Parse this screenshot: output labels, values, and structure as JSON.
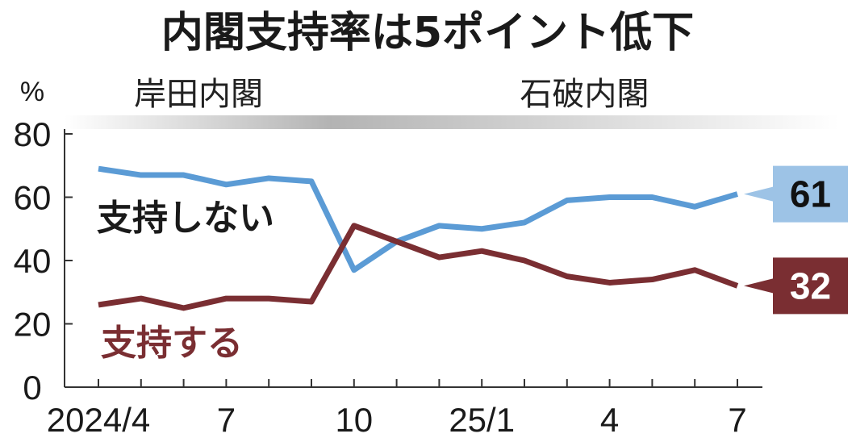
{
  "title": "内閣支持率は5ポイント低下",
  "colors": {
    "disapprove": "#5b9bd5",
    "approve": "#7a2e32",
    "disapprove_box": "#9dc3e6",
    "era_bar": "#b3b3b3",
    "axis": "#333333"
  },
  "chart_data": {
    "type": "line",
    "title": "内閣支持率は5ポイント低下",
    "ylabel": "%",
    "ylim": [
      0,
      80
    ],
    "yticks": [
      "0",
      "20",
      "40",
      "60",
      "80"
    ],
    "x": [
      "2024/4",
      "2024/5",
      "2024/6",
      "2024/7",
      "2024/8",
      "2024/9",
      "2024/10",
      "2024/11",
      "2024/12",
      "2025/1",
      "2025/2",
      "2025/3",
      "2025/4",
      "2025/5",
      "2025/6",
      "2025/7"
    ],
    "xtick_labels": [
      {
        "index": 0,
        "label": "2024/4"
      },
      {
        "index": 3,
        "label": "7"
      },
      {
        "index": 6,
        "label": "10"
      },
      {
        "index": 9,
        "label": "25/1"
      },
      {
        "index": 12,
        "label": "4"
      },
      {
        "index": 15,
        "label": "7"
      }
    ],
    "eras": [
      {
        "label": "岸田内閣",
        "from": 0,
        "to": 5
      },
      {
        "label": "石破内閣",
        "from": 6,
        "to": 15
      }
    ],
    "series": [
      {
        "name": "支持しない",
        "key": "disapprove",
        "values": [
          69,
          67,
          67,
          64,
          66,
          65,
          37,
          46,
          51,
          50,
          52,
          59,
          60,
          60,
          57,
          61
        ],
        "end_label": "61"
      },
      {
        "name": "支持する",
        "key": "approve",
        "values": [
          26,
          28,
          25,
          28,
          28,
          27,
          51,
          46,
          41,
          43,
          40,
          35,
          33,
          34,
          37,
          32
        ],
        "end_label": "32"
      }
    ]
  }
}
